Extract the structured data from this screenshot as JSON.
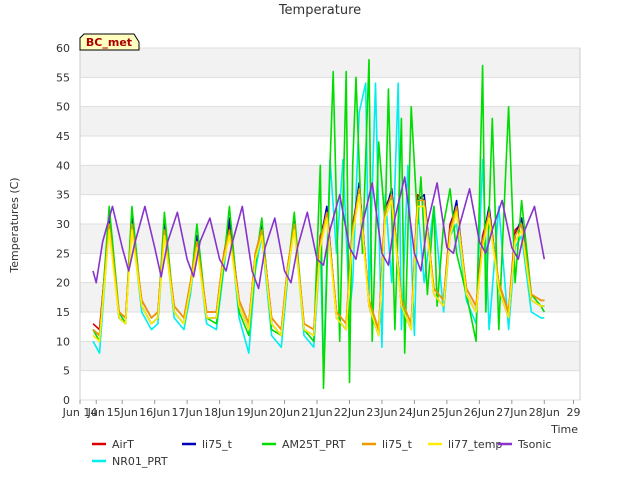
{
  "chart_data": {
    "type": "line",
    "title": "Temperature",
    "xlabel": "Time",
    "ylabel": "Temperatures (C)",
    "badge": "BC_met",
    "xlim": [
      13.6,
      29
    ],
    "ylim": [
      0,
      60
    ],
    "x_ticks": [
      {
        "v": 13.6,
        "label": "Jun 14"
      },
      {
        "v": 14.1,
        "label": "Jun"
      },
      {
        "v": 14.9,
        "label": "15Jun"
      },
      {
        "v": 15.9,
        "label": "16Jun"
      },
      {
        "v": 16.9,
        "label": "17Jun"
      },
      {
        "v": 17.9,
        "label": "18Jun"
      },
      {
        "v": 18.9,
        "label": "19Jun"
      },
      {
        "v": 19.9,
        "label": "20Jun"
      },
      {
        "v": 20.9,
        "label": "21Jun"
      },
      {
        "v": 21.9,
        "label": "22Jun"
      },
      {
        "v": 22.9,
        "label": "23Jun"
      },
      {
        "v": 23.9,
        "label": "24Jun"
      },
      {
        "v": 24.9,
        "label": "25Jun"
      },
      {
        "v": 25.9,
        "label": "26Jun"
      },
      {
        "v": 26.9,
        "label": "27Jun"
      },
      {
        "v": 27.9,
        "label": "28Jun"
      },
      {
        "v": 28.8,
        "label": "29"
      }
    ],
    "y_ticks": [
      0,
      5,
      10,
      15,
      20,
      25,
      30,
      35,
      40,
      45,
      50,
      55,
      60
    ],
    "legend_position": "bottom",
    "series": [
      {
        "name": "AirT",
        "color": "#dd0000",
        "x": [
          14.0,
          14.2,
          14.5,
          14.8,
          15.0,
          15.2,
          15.5,
          15.8,
          16.0,
          16.2,
          16.5,
          16.8,
          17.0,
          17.2,
          17.5,
          17.8,
          18.0,
          18.2,
          18.5,
          18.8,
          19.0,
          19.2,
          19.5,
          19.8,
          20.0,
          20.2,
          20.5,
          20.8,
          21.0,
          21.2,
          21.5,
          21.8,
          22.0,
          22.2,
          22.5,
          22.8,
          23.0,
          23.2,
          23.5,
          23.8,
          24.0,
          24.2,
          24.5,
          24.8,
          25.0,
          25.2,
          25.5,
          25.8,
          26.0,
          26.2,
          26.5,
          26.8,
          27.0,
          27.2,
          27.5,
          27.8,
          27.9
        ],
        "y": [
          13,
          12,
          30,
          15,
          14,
          30,
          17,
          14,
          15,
          29,
          16,
          14,
          20,
          27,
          15,
          15,
          24,
          30,
          17,
          13,
          25,
          29,
          14,
          12,
          23,
          30,
          13,
          12,
          28,
          32,
          15,
          13,
          30,
          36,
          17,
          12,
          33,
          35,
          17,
          13,
          35,
          34,
          19,
          17,
          30,
          33,
          19,
          16,
          28,
          32,
          20,
          15,
          29,
          30,
          18,
          17,
          17
        ]
      },
      {
        "name": "li75_t",
        "color": "#0000bb",
        "x": [
          14.0,
          14.2,
          14.5,
          14.8,
          15.0,
          15.2,
          15.5,
          15.8,
          16.0,
          16.2,
          16.5,
          16.8,
          17.0,
          17.2,
          17.5,
          17.8,
          18.0,
          18.2,
          18.5,
          18.8,
          19.0,
          19.2,
          19.5,
          19.8,
          20.0,
          20.2,
          20.5,
          20.8,
          21.0,
          21.2,
          21.5,
          21.8,
          22.0,
          22.2,
          22.5,
          22.8,
          23.0,
          23.2,
          23.5,
          23.8,
          24.0,
          24.2,
          24.5,
          24.8,
          25.0,
          25.2,
          25.5,
          25.8,
          26.0,
          26.2,
          26.5,
          26.8,
          27.0,
          27.2,
          27.5,
          27.8,
          27.9
        ],
        "y": [
          12,
          11,
          31,
          14,
          13,
          31,
          16,
          13,
          14,
          30,
          15,
          13,
          19,
          28,
          14,
          14,
          23,
          31,
          16,
          12,
          24,
          30,
          13,
          11,
          22,
          31,
          12,
          11,
          27,
          33,
          14,
          12,
          29,
          37,
          16,
          11,
          32,
          36,
          16,
          12,
          34,
          35,
          18,
          16,
          29,
          34,
          18,
          15,
          27,
          33,
          19,
          14,
          28,
          31,
          17,
          16,
          16
        ]
      },
      {
        "name": "AM25T_PRT",
        "color": "#00dd00",
        "x": [
          14.0,
          14.2,
          14.5,
          14.8,
          15.0,
          15.2,
          15.5,
          15.8,
          16.0,
          16.2,
          16.5,
          16.8,
          17.0,
          17.2,
          17.5,
          17.8,
          18.0,
          18.2,
          18.5,
          18.8,
          19.0,
          19.2,
          19.5,
          19.8,
          20.0,
          20.2,
          20.5,
          20.8,
          21.0,
          21.1,
          21.3,
          21.4,
          21.6,
          21.8,
          21.9,
          22.0,
          22.1,
          22.3,
          22.5,
          22.6,
          22.8,
          23.0,
          23.1,
          23.3,
          23.5,
          23.6,
          23.8,
          24.0,
          24.1,
          24.3,
          24.5,
          24.6,
          24.8,
          25.0,
          25.2,
          25.5,
          25.8,
          26.0,
          26.1,
          26.3,
          26.5,
          26.6,
          26.8,
          27.0,
          27.2,
          27.5,
          27.8,
          27.9
        ],
        "y": [
          12,
          10,
          33,
          15,
          13,
          33,
          16,
          13,
          14,
          32,
          15,
          13,
          19,
          30,
          14,
          13,
          22,
          33,
          15,
          11,
          23,
          31,
          12,
          11,
          22,
          32,
          12,
          10,
          40,
          2,
          40,
          56,
          10,
          56,
          3,
          40,
          55,
          25,
          58,
          10,
          44,
          30,
          53,
          12,
          48,
          8,
          50,
          30,
          38,
          18,
          33,
          16,
          30,
          36,
          25,
          18,
          10,
          57,
          15,
          48,
          12,
          25,
          50,
          20,
          34,
          18,
          16,
          15
        ]
      },
      {
        "name": "li75_t",
        "color": "#ee9900",
        "x": [
          14.0,
          14.2,
          14.5,
          14.8,
          15.0,
          15.2,
          15.5,
          15.8,
          16.0,
          16.2,
          16.5,
          16.8,
          17.0,
          17.2,
          17.5,
          17.8,
          18.0,
          18.2,
          18.5,
          18.8,
          19.0,
          19.2,
          19.5,
          19.8,
          20.0,
          20.2,
          20.5,
          20.8,
          21.0,
          21.2,
          21.5,
          21.8,
          22.0,
          22.2,
          22.5,
          22.8,
          23.0,
          23.2,
          23.5,
          23.8,
          24.0,
          24.2,
          24.5,
          24.8,
          25.0,
          25.2,
          25.5,
          25.8,
          26.0,
          26.2,
          26.5,
          26.8,
          27.0,
          27.2,
          27.5,
          27.8,
          27.9
        ],
        "y": [
          12,
          11,
          30,
          15,
          14,
          30,
          17,
          14,
          15,
          29,
          16,
          14,
          20,
          27,
          15,
          15,
          24,
          29,
          17,
          13,
          25,
          29,
          14,
          12,
          23,
          30,
          13,
          12,
          27,
          32,
          15,
          13,
          29,
          36,
          17,
          12,
          32,
          35,
          17,
          13,
          34,
          34,
          19,
          17,
          29,
          33,
          19,
          16,
          27,
          32,
          20,
          15,
          28,
          30,
          18,
          17,
          17
        ]
      },
      {
        "name": "li77_temp",
        "color": "#ffee00",
        "x": [
          14.0,
          14.2,
          14.5,
          14.8,
          15.0,
          15.2,
          15.5,
          15.8,
          16.0,
          16.2,
          16.5,
          16.8,
          17.0,
          17.2,
          17.5,
          17.8,
          18.0,
          18.2,
          18.5,
          18.8,
          19.0,
          19.2,
          19.5,
          19.8,
          20.0,
          20.2,
          20.5,
          20.8,
          21.0,
          21.2,
          21.5,
          21.8,
          22.0,
          22.2,
          22.5,
          22.8,
          23.0,
          23.2,
          23.5,
          23.8,
          24.0,
          24.2,
          24.5,
          24.8,
          25.0,
          25.2,
          25.5,
          25.8,
          26.0,
          26.2,
          26.5,
          26.8,
          27.0,
          27.2,
          27.5,
          27.8,
          27.9
        ],
        "y": [
          11,
          10,
          29,
          14,
          13,
          29,
          16,
          13,
          14,
          28,
          15,
          13,
          19,
          26,
          14,
          14,
          23,
          28,
          16,
          12,
          24,
          28,
          13,
          11,
          22,
          29,
          12,
          11,
          26,
          31,
          14,
          12,
          28,
          35,
          16,
          11,
          31,
          34,
          16,
          12,
          33,
          33,
          18,
          16,
          28,
          32,
          18,
          15,
          26,
          31,
          19,
          14,
          27,
          29,
          17,
          16,
          16
        ]
      },
      {
        "name": "Tsonic",
        "color": "#8833cc",
        "x": [
          14.0,
          14.1,
          14.3,
          14.6,
          14.9,
          15.1,
          15.3,
          15.6,
          15.9,
          16.1,
          16.3,
          16.6,
          16.9,
          17.1,
          17.3,
          17.6,
          17.9,
          18.1,
          18.3,
          18.6,
          18.9,
          19.1,
          19.3,
          19.6,
          19.9,
          20.1,
          20.3,
          20.6,
          20.9,
          21.1,
          21.3,
          21.6,
          21.9,
          22.1,
          22.3,
          22.6,
          22.9,
          23.1,
          23.3,
          23.6,
          23.9,
          24.1,
          24.3,
          24.6,
          24.9,
          25.1,
          25.3,
          25.6,
          25.9,
          26.1,
          26.3,
          26.6,
          26.9,
          27.1,
          27.3,
          27.6,
          27.9
        ],
        "y": [
          22,
          20,
          27,
          33,
          26,
          22,
          27,
          33,
          26,
          21,
          27,
          32,
          24,
          21,
          27,
          31,
          24,
          22,
          27,
          33,
          22,
          19,
          26,
          31,
          22,
          20,
          26,
          32,
          24,
          23,
          29,
          35,
          26,
          24,
          30,
          37,
          25,
          23,
          31,
          38,
          25,
          22,
          30,
          37,
          26,
          25,
          30,
          36,
          27,
          25,
          29,
          34,
          26,
          24,
          29,
          33,
          24
        ]
      },
      {
        "name": "NR01_PRT",
        "color": "#00eeee",
        "x": [
          14.0,
          14.2,
          14.5,
          14.8,
          15.0,
          15.2,
          15.5,
          15.8,
          16.0,
          16.2,
          16.5,
          16.8,
          17.0,
          17.2,
          17.5,
          17.8,
          18.0,
          18.2,
          18.5,
          18.8,
          19.0,
          19.2,
          19.5,
          19.8,
          20.0,
          20.2,
          20.5,
          20.8,
          21.0,
          21.1,
          21.3,
          21.5,
          21.7,
          21.9,
          22.0,
          22.2,
          22.4,
          22.5,
          22.7,
          22.9,
          23.0,
          23.2,
          23.4,
          23.5,
          23.7,
          23.9,
          24.0,
          24.2,
          24.5,
          24.8,
          25.0,
          25.2,
          25.5,
          25.8,
          26.0,
          26.2,
          26.5,
          26.8,
          27.0,
          27.2,
          27.5,
          27.8,
          27.9
        ],
        "y": [
          10,
          8,
          30,
          14,
          13,
          30,
          15,
          12,
          13,
          29,
          14,
          12,
          18,
          27,
          13,
          12,
          21,
          30,
          14,
          8,
          22,
          28,
          11,
          9,
          21,
          30,
          11,
          9,
          26,
          5,
          41,
          25,
          41,
          15,
          20,
          49,
          54,
          18,
          54,
          9,
          35,
          20,
          54,
          12,
          40,
          11,
          33,
          20,
          33,
          15,
          28,
          30,
          17,
          13,
          41,
          12,
          33,
          12,
          26,
          28,
          15,
          14,
          14
        ]
      }
    ]
  }
}
